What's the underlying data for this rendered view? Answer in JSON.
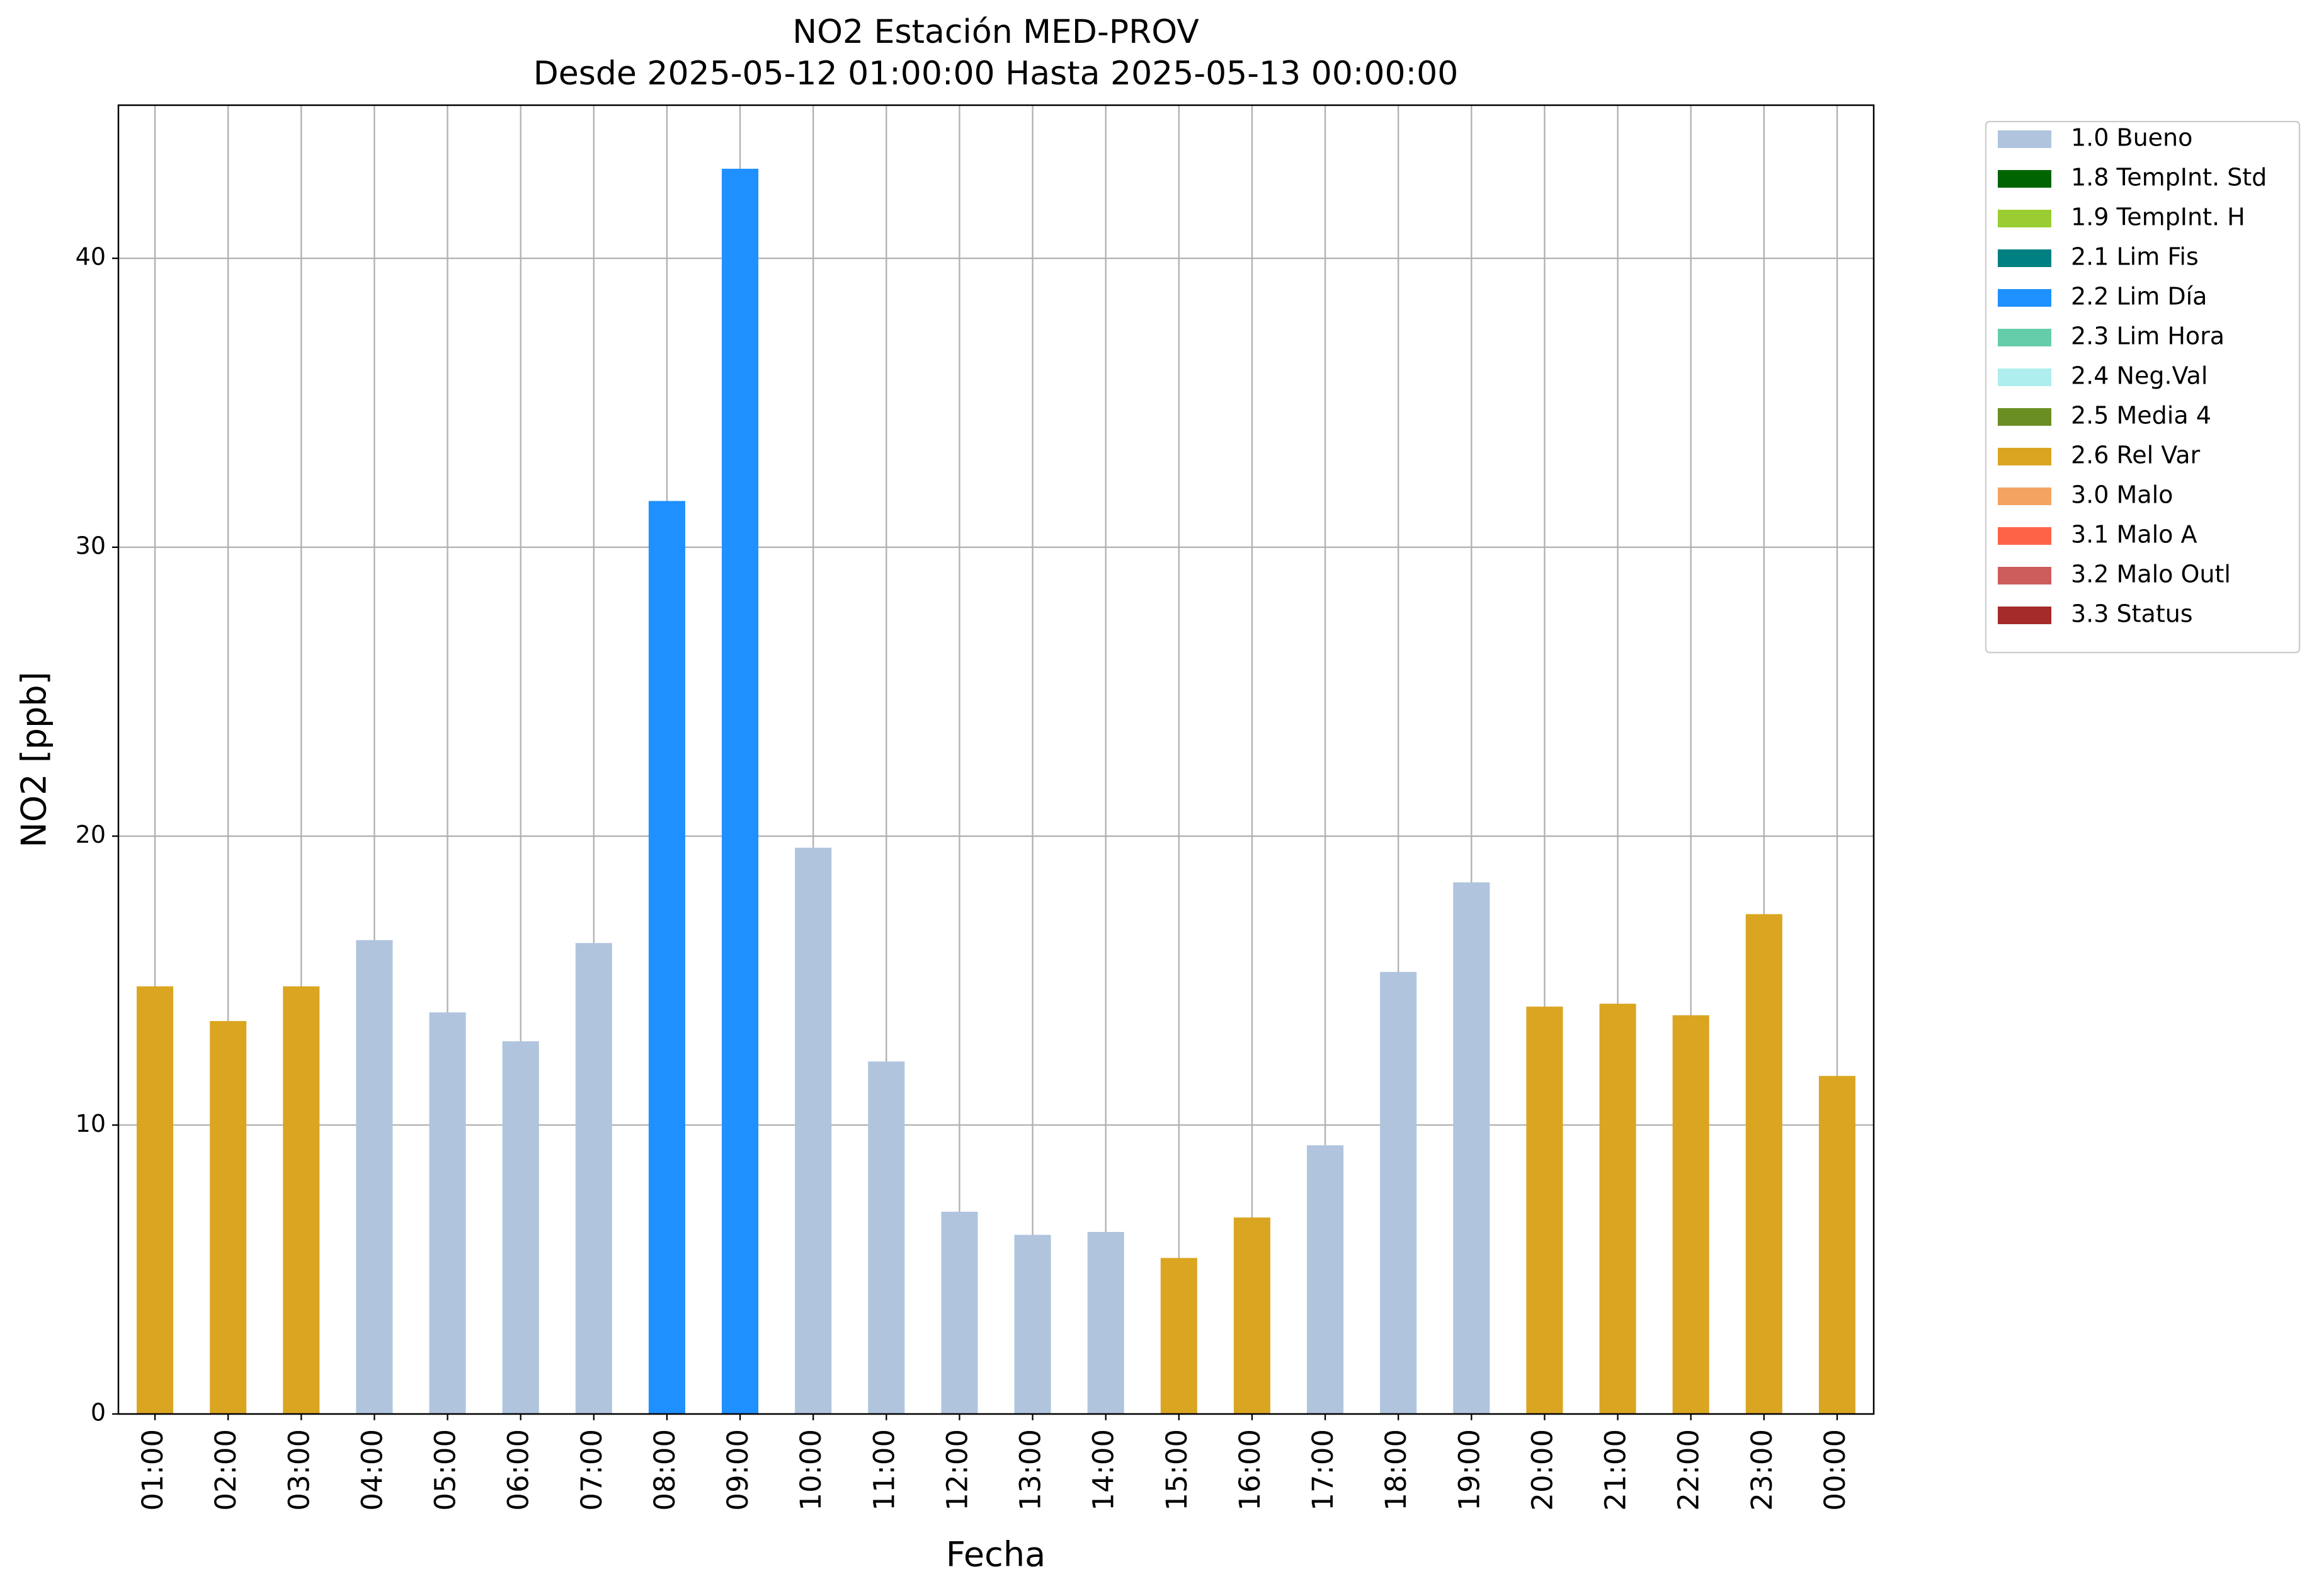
{
  "chart_data": {
    "type": "bar",
    "title": "NO2 Estación MED-PROV",
    "subtitle": "Desde 2025-05-12 01:00:00 Hasta 2025-05-13 00:00:00",
    "x_label": "Fecha",
    "y_label": "NO2 [ppb]",
    "categories": [
      "01:00",
      "02:00",
      "03:00",
      "04:00",
      "05:00",
      "06:00",
      "07:00",
      "08:00",
      "09:00",
      "10:00",
      "11:00",
      "12:00",
      "13:00",
      "14:00",
      "15:00",
      "16:00",
      "17:00",
      "18:00",
      "19:00",
      "20:00",
      "21:00",
      "22:00",
      "23:00",
      "00:00"
    ],
    "series": [
      {
        "name": "1.0 Bueno",
        "color": "#b0c4de",
        "values": [
          null,
          null,
          null,
          16.4,
          13.9,
          12.9,
          16.3,
          null,
          null,
          19.6,
          12.2,
          7.0,
          6.2,
          6.3,
          null,
          null,
          9.3,
          15.3,
          18.4,
          null,
          null,
          null,
          null,
          null
        ]
      },
      {
        "name": "1.8 TempInt. Std",
        "color": "#006400",
        "values": [
          null,
          null,
          null,
          null,
          null,
          null,
          null,
          null,
          null,
          null,
          null,
          null,
          null,
          null,
          null,
          null,
          null,
          null,
          null,
          null,
          null,
          null,
          null,
          null
        ]
      },
      {
        "name": "1.9 TempInt. H",
        "color": "#9acd32",
        "values": [
          null,
          null,
          null,
          null,
          null,
          null,
          null,
          null,
          null,
          null,
          null,
          null,
          null,
          null,
          null,
          null,
          null,
          null,
          null,
          null,
          null,
          null,
          null,
          null
        ]
      },
      {
        "name": "2.1 Lim Fis",
        "color": "#008080",
        "values": [
          null,
          null,
          null,
          null,
          null,
          null,
          null,
          null,
          null,
          null,
          null,
          null,
          null,
          null,
          null,
          null,
          null,
          null,
          null,
          null,
          null,
          null,
          null,
          null
        ]
      },
      {
        "name": "2.2 Lim Día",
        "color": "#1e90ff",
        "values": [
          null,
          null,
          null,
          null,
          null,
          null,
          null,
          31.6,
          43.1,
          null,
          null,
          null,
          null,
          null,
          null,
          null,
          null,
          null,
          null,
          null,
          null,
          null,
          null,
          null
        ]
      },
      {
        "name": "2.3 Lim Hora",
        "color": "#66cdaa",
        "values": [
          null,
          null,
          null,
          null,
          null,
          null,
          null,
          null,
          null,
          null,
          null,
          null,
          null,
          null,
          null,
          null,
          null,
          null,
          null,
          null,
          null,
          null,
          null,
          null
        ]
      },
      {
        "name": "2.4 Neg.Val",
        "color": "#afeeee",
        "values": [
          null,
          null,
          null,
          null,
          null,
          null,
          null,
          null,
          null,
          null,
          null,
          null,
          null,
          null,
          null,
          null,
          null,
          null,
          null,
          null,
          null,
          null,
          null,
          null
        ]
      },
      {
        "name": "2.5 Media 4",
        "color": "#6b8e23",
        "values": [
          null,
          null,
          null,
          null,
          null,
          null,
          null,
          null,
          null,
          null,
          null,
          null,
          null,
          null,
          null,
          null,
          null,
          null,
          null,
          null,
          null,
          null,
          null,
          null
        ]
      },
      {
        "name": "2.6 Rel Var",
        "color": "#daa520",
        "values": [
          14.8,
          13.6,
          14.8,
          null,
          null,
          null,
          null,
          null,
          null,
          null,
          null,
          null,
          null,
          null,
          5.4,
          6.8,
          null,
          null,
          null,
          14.1,
          14.2,
          13.8,
          17.3,
          11.7
        ]
      },
      {
        "name": "3.0 Malo",
        "color": "#f4a460",
        "values": [
          null,
          null,
          null,
          null,
          null,
          null,
          null,
          null,
          null,
          null,
          null,
          null,
          null,
          null,
          null,
          null,
          null,
          null,
          null,
          null,
          null,
          null,
          null,
          null
        ]
      },
      {
        "name": "3.1 Malo A",
        "color": "#ff6347",
        "values": [
          null,
          null,
          null,
          null,
          null,
          null,
          null,
          null,
          null,
          null,
          null,
          null,
          null,
          null,
          null,
          null,
          null,
          null,
          null,
          null,
          null,
          null,
          null,
          null
        ]
      },
      {
        "name": "3.2 Malo Outl",
        "color": "#cd5c5c",
        "values": [
          null,
          null,
          null,
          null,
          null,
          null,
          null,
          null,
          null,
          null,
          null,
          null,
          null,
          null,
          null,
          null,
          null,
          null,
          null,
          null,
          null,
          null,
          null,
          null
        ]
      },
      {
        "name": "3.3 Status",
        "color": "#a52a2a",
        "values": [
          null,
          null,
          null,
          null,
          null,
          null,
          null,
          null,
          null,
          null,
          null,
          null,
          null,
          null,
          null,
          null,
          null,
          null,
          null,
          null,
          null,
          null,
          null,
          null
        ]
      }
    ],
    "ylim": [
      0,
      45.3
    ],
    "yticks": [
      0,
      10,
      20,
      30,
      40
    ],
    "grid": true,
    "legend": "outside-upper-right"
  }
}
